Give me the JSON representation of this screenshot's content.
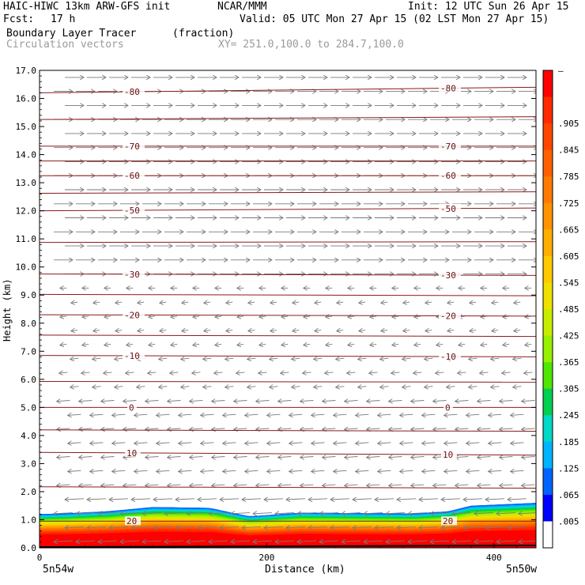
{
  "header": {
    "model": "HAIC-HIWC 13km ARW-GFS init",
    "org": "NCAR/MMM",
    "init": "Init: 12 UTC Sun 26 Apr 15",
    "fcst_label": "Fcst:",
    "fcst_value": "17 h",
    "valid": "Valid: 05 UTC Mon 27 Apr 15 (02 LST Mon 27 Apr 15)",
    "field": "Boundary Layer Tracer",
    "field_units": "(fraction)",
    "vectors": "Circulation vectors",
    "xy": "XY= 251.0,100.0 to 284.7,100.0"
  },
  "chart_data": {
    "type": "heatmap",
    "title": "Boundary Layer Tracer",
    "units": "(fraction)",
    "xlabel": "Distance (km)",
    "ylabel": "Height (km)",
    "xlim": [
      0,
      437
    ],
    "ylim": [
      0,
      17
    ],
    "x_ticks": [
      0,
      200,
      400
    ],
    "x_end_labels": [
      "5n54w",
      "5n50w"
    ],
    "y_ticks": [
      "0.0",
      "1.0",
      "2.0",
      "3.0",
      "4.0",
      "5.0",
      "6.0",
      "7.0",
      "8.0",
      "9.0",
      "10.0",
      "11.0",
      "12.0",
      "13.0",
      "14.0",
      "15.0",
      "16.0",
      "17.0"
    ],
    "colorbar_labels": [
      "–",
      ".905",
      ".845",
      ".785",
      ".725",
      ".665",
      ".605",
      ".545",
      ".485",
      ".425",
      ".365",
      ".305",
      ".245",
      ".185",
      ".125",
      ".065",
      ".005"
    ],
    "colorbar_colors": [
      "#ff0000",
      "#ff2a00",
      "#ff4600",
      "#ff6000",
      "#ff7a00",
      "#ff9400",
      "#ffae00",
      "#ffc800",
      "#f0e000",
      "#c8ec00",
      "#96f000",
      "#50e600",
      "#00d050",
      "#00d8c8",
      "#00b4ff",
      "#0064ff",
      "#0000ff",
      "#ffffff"
    ],
    "tracer_top_km": [
      [
        0,
        1.2
      ],
      [
        20,
        1.22
      ],
      [
        60,
        1.3
      ],
      [
        100,
        1.45
      ],
      [
        150,
        1.42
      ],
      [
        175,
        1.2
      ],
      [
        185,
        1.12
      ],
      [
        230,
        1.25
      ],
      [
        330,
        1.22
      ],
      [
        360,
        1.3
      ],
      [
        380,
        1.5
      ],
      [
        437,
        1.6
      ]
    ],
    "temperature_contours": [
      {
        "label": "-80",
        "heights_km": [
          16.2,
          16.4
        ]
      },
      {
        "label": "-70",
        "heights_km": [
          14.3,
          14.3
        ]
      },
      {
        "label": "-60",
        "heights_km": [
          13.25,
          13.25
        ]
      },
      {
        "label": "-50",
        "heights_km": [
          12.0,
          12.1
        ]
      },
      {
        "label": "-30",
        "heights_km": [
          9.75,
          9.7
        ]
      },
      {
        "label": "-20",
        "heights_km": [
          8.3,
          8.25
        ]
      },
      {
        "label": "-10",
        "heights_km": [
          6.85,
          6.8
        ]
      },
      {
        "label": "0",
        "heights_km": [
          5.0,
          5.0
        ]
      },
      {
        "label": "10",
        "heights_km": [
          3.4,
          3.3
        ]
      },
      {
        "label": "20",
        "heights_km": [
          0.95,
          0.95
        ]
      }
    ],
    "contour_label_positions_km": [
      [
        110,
        270
      ],
      [
        425,
        430
      ]
    ],
    "vectors": {
      "description_upper": "eastward flow above ~9 km",
      "upper_u": 1.0,
      "mid_u": -0.35,
      "lower_u": -1.0
    }
  }
}
